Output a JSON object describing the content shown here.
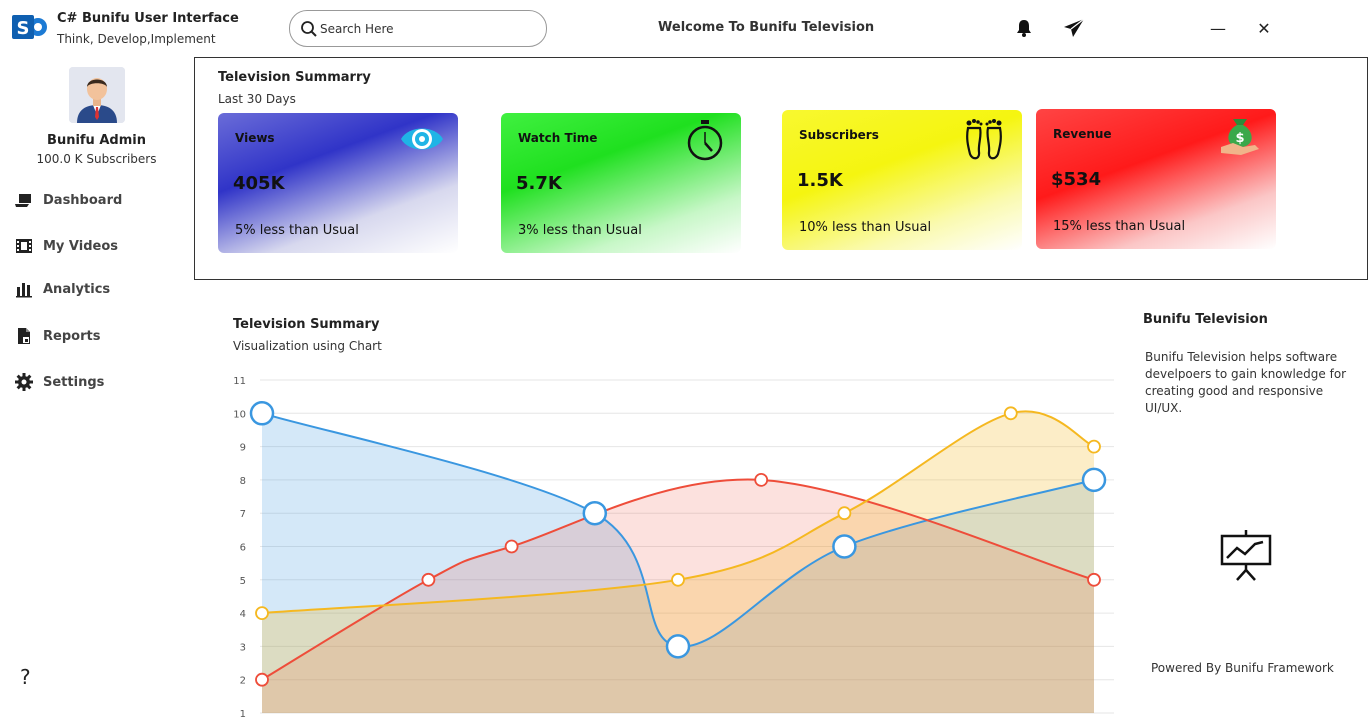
{
  "app": {
    "title": "C# Bunifu User Interface",
    "subtitle": "Think, Develop,Implement",
    "welcome": "Welcome To Bunifu Television"
  },
  "search": {
    "placeholder": "Search Here",
    "value": ""
  },
  "window_controls": {
    "minimize": "—",
    "close": "✕"
  },
  "user": {
    "name": "Bunifu Admin",
    "subscribers": "100.0 K Subscribers"
  },
  "sidebar": {
    "items": [
      {
        "label": "Dashboard",
        "icon": "laptop-icon"
      },
      {
        "label": "My Videos",
        "icon": "film-icon"
      },
      {
        "label": "Analytics",
        "icon": "bar-chart-icon"
      },
      {
        "label": "Reports",
        "icon": "document-icon"
      },
      {
        "label": "Settings",
        "icon": "gear-icon"
      }
    ],
    "help": "?"
  },
  "summary": {
    "title": "Television Summarry",
    "subtitle": "Last 30 Days",
    "cards": [
      {
        "label": "Views",
        "value": "405K",
        "note": "5% less than Usual",
        "icon": "eye-icon"
      },
      {
        "label": "Watch Time",
        "value": "5.7K",
        "note": "3% less than Usual",
        "icon": "stopwatch-icon"
      },
      {
        "label": "Subscribers",
        "value": "1.5K",
        "note": "10% less than Usual",
        "icon": "footprints-icon"
      },
      {
        "label": "Revenue",
        "value": "$534",
        "note": "15% less than Usual",
        "icon": "money-bag-icon"
      }
    ]
  },
  "chart_section": {
    "title": "Television Summary",
    "subtitle": "Visualization using  Chart"
  },
  "chart_data": {
    "type": "area",
    "x": [
      0,
      1,
      2,
      3,
      4,
      5,
      6,
      7,
      8,
      9,
      10
    ],
    "ylim": [
      1,
      11
    ],
    "yticks": [
      "1",
      "2",
      "3",
      "4",
      "5",
      "6",
      "7",
      "8",
      "9",
      "10",
      "11"
    ],
    "grid": true,
    "legend": "none",
    "series": [
      {
        "color": "#3a97e0",
        "fill": "rgba(58,151,224,0.22)",
        "points": [
          [
            0,
            10
          ],
          [
            4,
            7
          ],
          [
            5,
            3
          ],
          [
            7,
            6
          ],
          [
            10,
            8
          ]
        ],
        "marker": "large"
      },
      {
        "color": "#ee4d3a",
        "fill": "rgba(238,77,58,0.17)",
        "points": [
          [
            0,
            2
          ],
          [
            2,
            5
          ],
          [
            3,
            6
          ],
          [
            6,
            8
          ],
          [
            10,
            5
          ]
        ],
        "marker": "small"
      },
      {
        "color": "#f5b820",
        "fill": "rgba(245,184,32,0.25)",
        "points": [
          [
            0,
            4
          ],
          [
            5,
            5
          ],
          [
            7,
            7
          ],
          [
            9,
            10
          ],
          [
            10,
            9
          ]
        ],
        "marker": "small"
      }
    ]
  },
  "info": {
    "title": "Bunifu Television",
    "text": "Bunifu Television helps software develpoers to gain knowledge for creating good and responsive UI/UX.",
    "powered": "Powered By Bunifu Framework"
  }
}
